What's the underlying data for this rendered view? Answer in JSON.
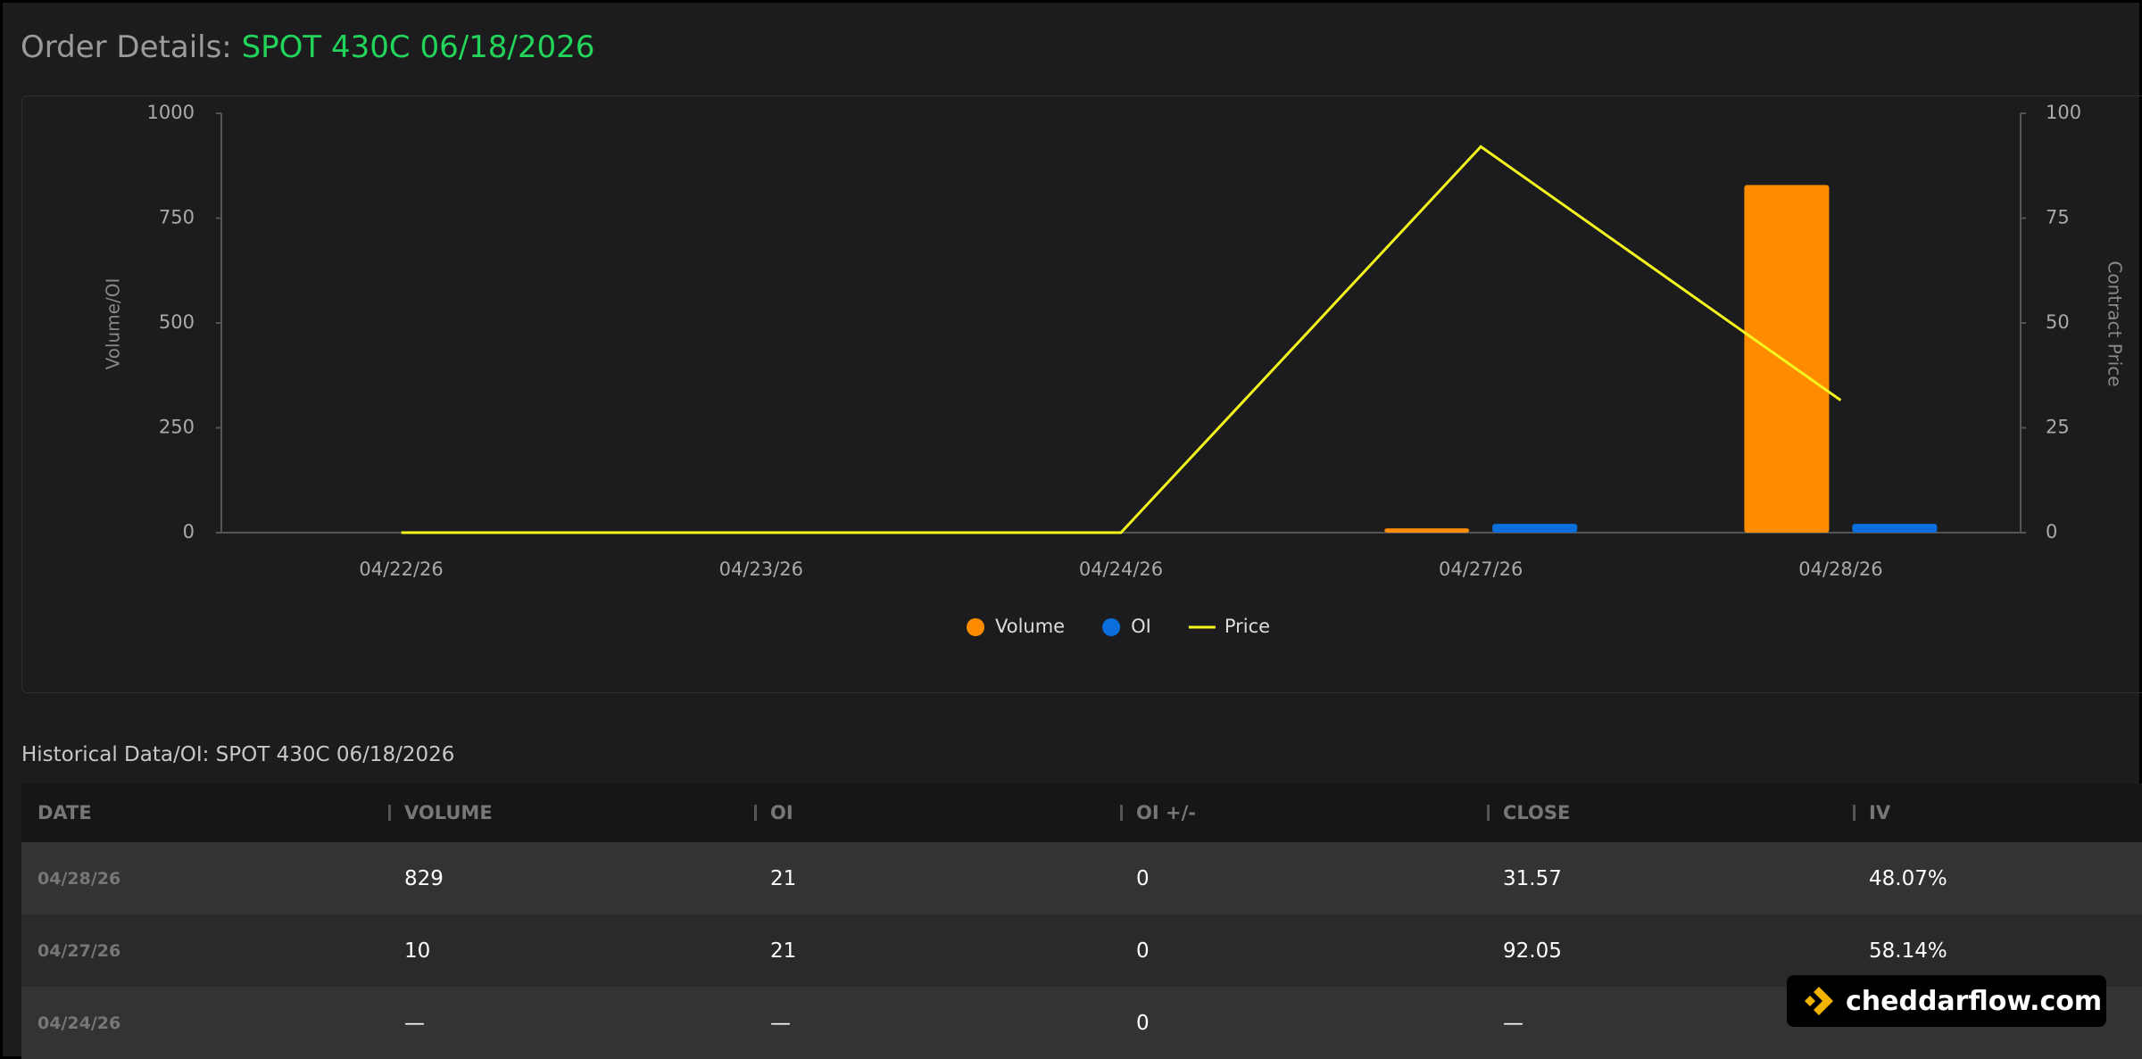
{
  "header": {
    "label": "Order Details:",
    "contract": "SPOT 430C 06/18/2026"
  },
  "chart_data": {
    "type": "bar",
    "ylabel": "Volume/OI",
    "y2label": "Contract Price",
    "categories": [
      "04/22/26",
      "04/23/26",
      "04/24/26",
      "04/27/26",
      "04/28/26"
    ],
    "series": [
      {
        "name": "Volume",
        "type": "bar",
        "color": "#ff8c00",
        "values": [
          null,
          null,
          null,
          10,
          829
        ]
      },
      {
        "name": "OI",
        "type": "bar",
        "color": "#0a6fdc",
        "values": [
          null,
          null,
          null,
          21,
          21
        ]
      },
      {
        "name": "Price",
        "type": "line",
        "axis": "y2",
        "color": "#f5f51e",
        "values": [
          0,
          0,
          0,
          92.05,
          31.57
        ]
      }
    ],
    "ylim": [
      0,
      1000
    ],
    "yticks": [
      0,
      250,
      500,
      750,
      1000
    ],
    "y2lim": [
      0,
      100
    ],
    "y2ticks": [
      0,
      25,
      50,
      75,
      100
    ],
    "legend": "bottom",
    "grid": false
  },
  "table": {
    "title": "Historical Data/OI: SPOT 430C 06/18/2026",
    "columns": [
      "DATE",
      "VOLUME",
      "OI",
      "OI +/-",
      "CLOSE",
      "IV"
    ],
    "rows": [
      [
        "04/28/26",
        "829",
        "21",
        "0",
        "31.57",
        "48.07%"
      ],
      [
        "04/27/26",
        "10",
        "21",
        "0",
        "92.05",
        "58.14%"
      ],
      [
        "04/24/26",
        "—",
        "—",
        "0",
        "—",
        "—"
      ]
    ]
  },
  "watermark": "cheddarflow.com"
}
